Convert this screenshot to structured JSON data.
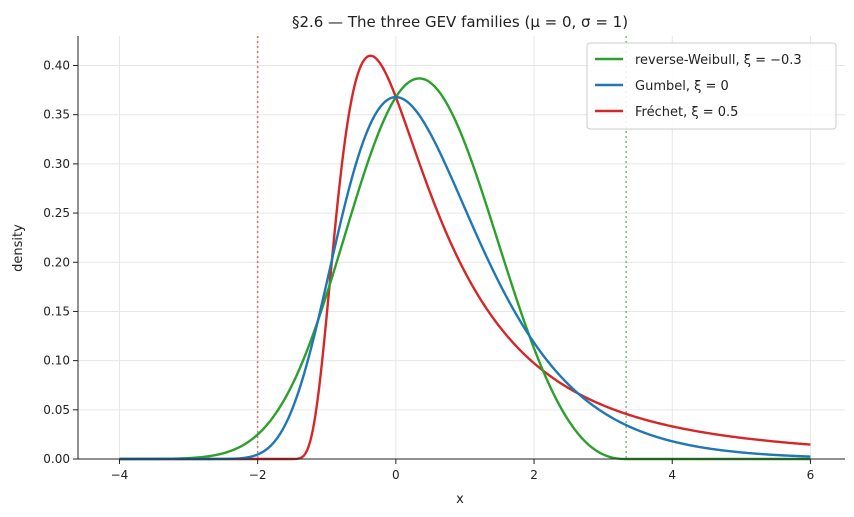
{
  "chart_data": {
    "type": "line",
    "title": "§2.6 — The three GEV families (μ = 0, σ = 1)",
    "xlabel": "x",
    "ylabel": "density",
    "xlim": [
      -4.6,
      6.5
    ],
    "ylim": [
      0,
      0.43
    ],
    "xticks": [
      -4,
      -2,
      0,
      2,
      4,
      6
    ],
    "yticks": [
      0.0,
      0.05,
      0.1,
      0.15,
      0.2,
      0.25,
      0.3,
      0.35,
      0.4
    ],
    "xtick_labels": [
      "−4",
      "−2",
      "0",
      "2",
      "4",
      "6"
    ],
    "ytick_labels": [
      "0.00",
      "0.05",
      "0.10",
      "0.15",
      "0.20",
      "0.25",
      "0.30",
      "0.35",
      "0.40"
    ],
    "grid": true,
    "legend_position": "top-right",
    "series": [
      {
        "name": "reverse-Weibull, ξ = −0.3",
        "xi": -0.3,
        "color": "#2ca02c"
      },
      {
        "name": "Gumbel, ξ = 0",
        "xi": 0,
        "color": "#1f77b4"
      },
      {
        "name": "Fréchet, ξ = 0.5",
        "xi": 0.5,
        "color": "#d62728"
      }
    ],
    "x": [
      -4.0,
      -3.5,
      -3.0,
      -2.5,
      -2.0,
      -1.5,
      -1.25,
      -1.0,
      -0.75,
      -0.5,
      -0.25,
      0.0,
      0.25,
      0.5,
      0.75,
      1.0,
      1.25,
      1.5,
      2.0,
      2.5,
      3.0,
      3.33,
      4.0,
      4.5,
      5.0,
      5.5,
      6.0
    ],
    "y": {
      "reverse-Weibull, ξ = −0.3": [
        0.0002,
        0.0013,
        0.0056,
        0.0177,
        0.0431,
        0.084,
        0.1094,
        0.1364,
        0.1736,
        0.252,
        0.3161,
        0.3679,
        0.3863,
        0.3869,
        0.3734,
        0.349,
        0.3159,
        0.277,
        0.1929,
        0.1101,
        0.0405,
        0.0,
        0.0,
        0.0,
        0.0,
        0.0,
        0.0
      ],
      "Gumbel, ξ = 0": [
        0.0,
        0.0,
        0.0,
        0.0,
        0.0046,
        0.0451,
        0.1062,
        0.1794,
        0.261,
        0.3175,
        0.3536,
        0.3679,
        0.361,
        0.3442,
        0.3185,
        0.2546,
        0.2328,
        0.201,
        0.1182,
        0.082,
        0.0471,
        0.0342,
        0.018,
        0.011,
        0.0067,
        0.0041,
        0.0025
      ],
      "Fréchet, ξ = 0.5": [
        0.0,
        0.0,
        0.0,
        0.0,
        0.0,
        0.0,
        0.0001,
        0.1353,
        0.3401,
        0.4101,
        0.384,
        0.3679,
        0.29,
        0.227,
        0.184,
        0.1535,
        0.131,
        0.113,
        0.08,
        0.0628,
        0.051,
        0.0446,
        0.034,
        0.0282,
        0.023,
        0.019,
        0.015
      ]
    },
    "reference_lines": [
      {
        "x": -2,
        "color": "#d62728",
        "style": "dotted",
        "label": ""
      },
      {
        "x": 3.333,
        "color": "#2ca02c",
        "style": "dotted",
        "label": ""
      }
    ]
  }
}
